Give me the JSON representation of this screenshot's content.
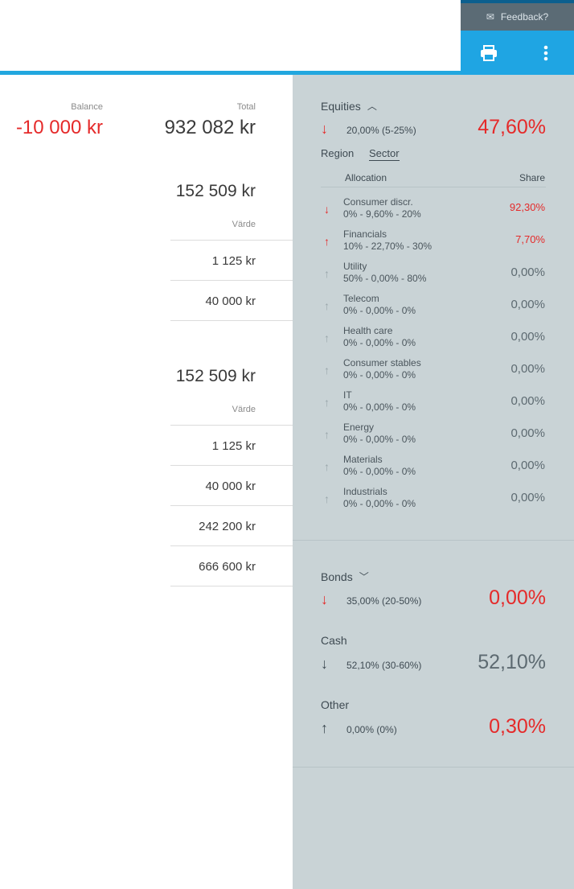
{
  "header": {
    "feedback_label": "Feedback?"
  },
  "left": {
    "balance_label": "Balance",
    "balance_value": "-10 000 kr",
    "total_label": "Total",
    "total_value": "932 082 kr",
    "section1": {
      "amount": "152 509 kr",
      "col_label": "Värde",
      "rows": [
        "1 125 kr",
        "40 000 kr"
      ]
    },
    "section2": {
      "amount": "152 509 kr",
      "col_label": "Värde",
      "rows": [
        "1 125 kr",
        "40 000 kr",
        "242 200 kr",
        "666 600 kr"
      ]
    }
  },
  "panel": {
    "equities": {
      "title": "Equities",
      "target": "20,00% (5-25%)",
      "percent": "47,60%",
      "tabs": [
        "Region",
        "Sector"
      ],
      "col_allocation": "Allocation",
      "col_share": "Share",
      "items": [
        {
          "name": "Consumer discr.",
          "range": "0% - 9,60% - 20%",
          "share": "92,30%",
          "arrow": "down",
          "color": "red"
        },
        {
          "name": "Financials",
          "range": "10% - 22,70% - 30%",
          "share": "7,70%",
          "arrow": "up",
          "color": "red"
        },
        {
          "name": "Utility",
          "range": "50% - 0,00% - 80%",
          "share": "0,00%",
          "arrow": "up",
          "color": "grey"
        },
        {
          "name": "Telecom",
          "range": "0% - 0,00% - 0%",
          "share": "0,00%",
          "arrow": "up",
          "color": "grey"
        },
        {
          "name": "Health care",
          "range": "0% - 0,00% - 0%",
          "share": "0,00%",
          "arrow": "up",
          "color": "grey"
        },
        {
          "name": "Consumer stables",
          "range": "0% - 0,00% - 0%",
          "share": "0,00%",
          "arrow": "up",
          "color": "grey"
        },
        {
          "name": "IT",
          "range": "0% - 0,00% - 0%",
          "share": "0,00%",
          "arrow": "up",
          "color": "grey"
        },
        {
          "name": "Energy",
          "range": "0% - 0,00% - 0%",
          "share": "0,00%",
          "arrow": "up",
          "color": "grey"
        },
        {
          "name": "Materials",
          "range": "0% - 0,00% - 0%",
          "share": "0,00%",
          "arrow": "up",
          "color": "grey"
        },
        {
          "name": "Industrials",
          "range": "0% - 0,00% - 0%",
          "share": "0,00%",
          "arrow": "up",
          "color": "grey"
        }
      ]
    },
    "bonds": {
      "title": "Bonds",
      "target": "35,00% (20-50%)",
      "percent": "0,00%",
      "arrow": "down",
      "color": "red"
    },
    "cash": {
      "title": "Cash",
      "target": "52,10% (30-60%)",
      "percent": "52,10%",
      "arrow": "down",
      "color": "dark"
    },
    "other": {
      "title": "Other",
      "target": "0,00% (0%)",
      "percent": "0,30%",
      "arrow": "up",
      "color": "red"
    }
  }
}
